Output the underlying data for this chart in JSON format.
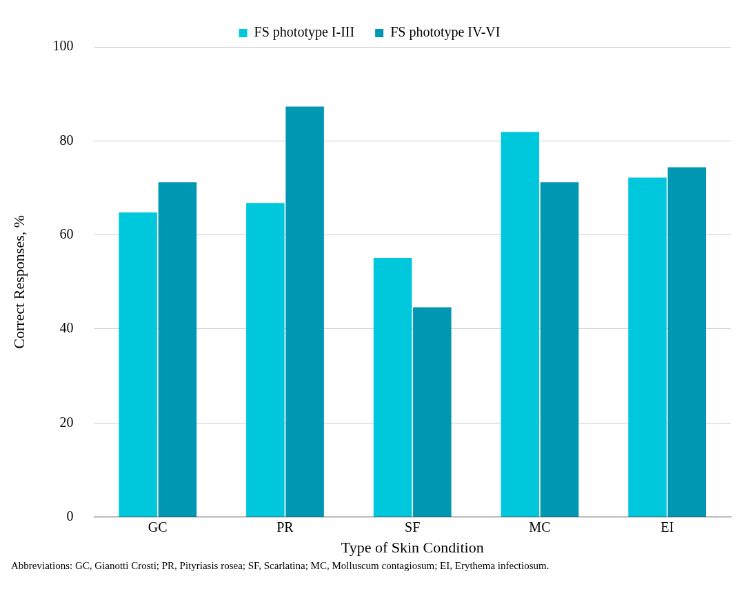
{
  "chart_data": {
    "type": "bar",
    "xlabel": "Type of Skin Condition",
    "ylabel": "Correct Responses, %",
    "categories": [
      "GC",
      "PR",
      "SF",
      "MC",
      "EI"
    ],
    "series": [
      {
        "name": "FS phototype I-III",
        "color": "#00c8dc",
        "values": [
          64.8,
          66.8,
          55.1,
          81.9,
          72.2
        ]
      },
      {
        "name": "FS phototype IV-VI",
        "color": "#0097b2",
        "values": [
          71.2,
          87.3,
          44.6,
          71.2,
          74.4
        ]
      }
    ],
    "ylim": [
      0,
      100
    ],
    "yticks": [
      0,
      20,
      40,
      60,
      80,
      100
    ],
    "grid": "y",
    "legend": "top",
    "annotations": [
      "Abbreviations: GC, Gianotti Crosti; PR, Pityriasis rosea; SF, Scarlatina; MC, Molluscum contagiosum; EI, Erythema infectiosum."
    ]
  }
}
